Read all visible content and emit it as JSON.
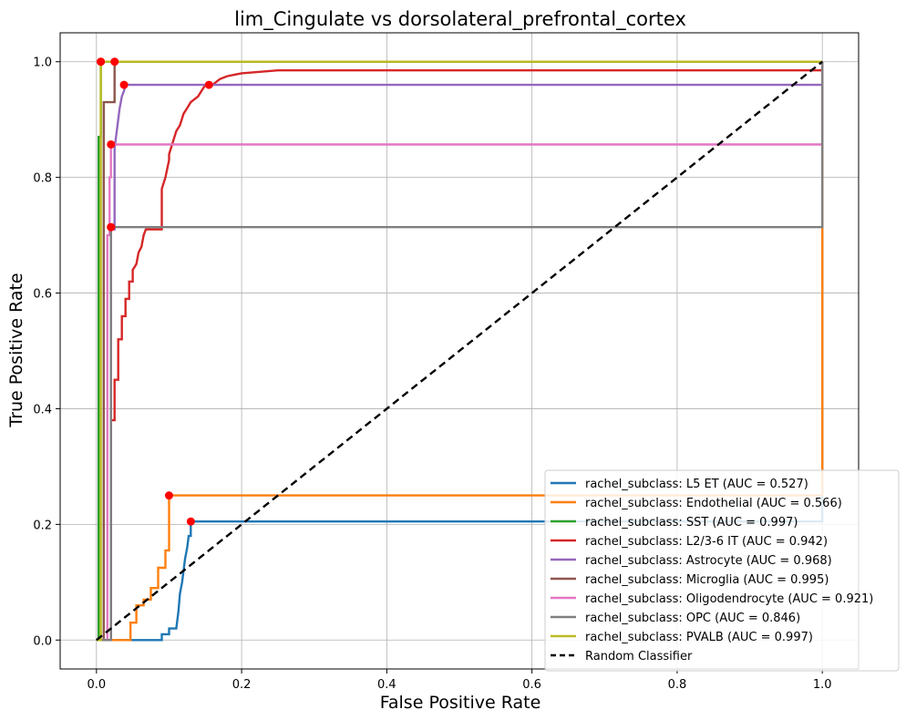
{
  "chart_data": {
    "type": "line",
    "title": "lim_Cingulate vs dorsolateral_prefrontal_cortex",
    "xlabel": "False Positive Rate",
    "ylabel": "True Positive Rate",
    "xlim": [
      -0.05,
      1.05
    ],
    "ylim": [
      -0.05,
      1.05
    ],
    "xticks": [
      0.0,
      0.2,
      0.4,
      0.6,
      0.8,
      1.0
    ],
    "yticks": [
      0.0,
      0.2,
      0.4,
      0.6,
      0.8,
      1.0
    ],
    "xtick_labels": [
      "0.0",
      "0.2",
      "0.4",
      "0.6",
      "0.8",
      "1.0"
    ],
    "ytick_labels": [
      "0.0",
      "0.2",
      "0.4",
      "0.6",
      "0.8",
      "1.0"
    ],
    "grid": true,
    "legend_position": "lower-right",
    "series": [
      {
        "name": "rachel_subclass: L5 ET (AUC = 0.527)",
        "color": "#1f77b4",
        "x": [
          0,
          0.05,
          0.09,
          0.09,
          0.1,
          0.1,
          0.11,
          0.113,
          0.115,
          0.118,
          0.12,
          0.122,
          0.125,
          0.127,
          0.13,
          0.13,
          0.6,
          1.0,
          1.0
        ],
        "y": [
          0,
          0,
          0,
          0.01,
          0.01,
          0.02,
          0.02,
          0.05,
          0.08,
          0.1,
          0.12,
          0.14,
          0.16,
          0.18,
          0.18,
          0.205,
          0.205,
          0.205,
          1.0
        ],
        "marker": [
          0.13,
          0.205
        ]
      },
      {
        "name": "rachel_subclass: Endothelial (AUC = 0.566)",
        "color": "#ff7f0e",
        "x": [
          0,
          0.047,
          0.047,
          0.055,
          0.055,
          0.065,
          0.065,
          0.075,
          0.075,
          0.085,
          0.085,
          0.095,
          0.095,
          0.1,
          0.1,
          1.0,
          1.0
        ],
        "y": [
          0,
          0,
          0.03,
          0.03,
          0.06,
          0.06,
          0.07,
          0.07,
          0.09,
          0.09,
          0.125,
          0.125,
          0.155,
          0.155,
          0.25,
          0.25,
          1.0
        ],
        "marker": [
          0.1,
          0.25
        ]
      },
      {
        "name": "rachel_subclass: SST (AUC = 0.997)",
        "color": "#2ca02c",
        "x": [
          0,
          0.003,
          0.003,
          0.006,
          0.006,
          1.0
        ],
        "y": [
          0,
          0,
          0.87,
          0.87,
          1.0,
          1.0
        ],
        "marker": [
          0.006,
          1.0
        ]
      },
      {
        "name": "rachel_subclass: L2/3-6 IT (AUC = 0.942)",
        "color": "#d62728",
        "x": [
          0,
          0.02,
          0.02,
          0.025,
          0.025,
          0.03,
          0.03,
          0.035,
          0.035,
          0.04,
          0.04,
          0.045,
          0.045,
          0.05,
          0.05,
          0.055,
          0.058,
          0.062,
          0.065,
          0.068,
          0.07,
          0.075,
          0.08,
          0.08,
          0.09,
          0.09,
          0.095,
          0.1,
          0.1,
          0.105,
          0.11,
          0.115,
          0.12,
          0.125,
          0.13,
          0.14,
          0.15,
          0.16,
          0.17,
          0.18,
          0.2,
          0.25,
          0.6,
          1.0,
          1.0
        ],
        "y": [
          0,
          0,
          0.38,
          0.38,
          0.45,
          0.45,
          0.52,
          0.52,
          0.56,
          0.56,
          0.59,
          0.59,
          0.62,
          0.62,
          0.64,
          0.65,
          0.67,
          0.68,
          0.7,
          0.71,
          0.71,
          0.71,
          0.71,
          0.71,
          0.71,
          0.78,
          0.8,
          0.83,
          0.84,
          0.86,
          0.88,
          0.89,
          0.91,
          0.92,
          0.93,
          0.94,
          0.96,
          0.96,
          0.97,
          0.975,
          0.98,
          0.985,
          0.985,
          0.985,
          1.0
        ],
        "marker": null
      },
      {
        "name": "rachel_subclass: Astrocyte (AUC = 0.968)",
        "color": "#9467bd",
        "x": [
          0,
          0.02,
          0.02,
          0.025,
          0.025,
          0.028,
          0.03,
          0.032,
          0.035,
          0.038,
          0.04,
          0.155,
          1.0,
          1.0
        ],
        "y": [
          0,
          0,
          0.71,
          0.71,
          0.85,
          0.88,
          0.9,
          0.92,
          0.94,
          0.95,
          0.96,
          0.96,
          0.96,
          1.0
        ],
        "marker": [
          0.155,
          0.96
        ]
      },
      {
        "name": "rachel_subclass: Microglia (AUC = 0.995)",
        "color": "#8c564b",
        "x": [
          0,
          0.01,
          0.01,
          0.025,
          0.025,
          1.0
        ],
        "y": [
          0,
          0,
          0.93,
          0.93,
          1.0,
          1.0
        ],
        "marker": [
          0.025,
          1.0
        ]
      },
      {
        "name": "rachel_subclass: Oligodendrocyte (AUC = 0.921)",
        "color": "#e377c2",
        "x": [
          0,
          0.015,
          0.015,
          0.018,
          0.018,
          0.02,
          0.02,
          1.0,
          1.0
        ],
        "y": [
          0,
          0,
          0.7,
          0.7,
          0.8,
          0.8,
          0.857,
          0.857,
          1.0
        ],
        "marker": [
          0.02,
          0.857
        ]
      },
      {
        "name": "rachel_subclass: OPC (AUC = 0.846)",
        "color": "#7f7f7f",
        "x": [
          0,
          0.02,
          0.02,
          1.0,
          1.0
        ],
        "y": [
          0,
          0,
          0.714,
          0.714,
          1.0
        ],
        "marker": [
          0.02,
          0.714
        ]
      },
      {
        "name": "rachel_subclass: PVALB (AUC = 0.997)",
        "color": "#bcbd22",
        "x": [
          0,
          0.006,
          0.006,
          1.0
        ],
        "y": [
          0,
          0,
          1.0,
          1.0
        ],
        "marker": [
          0.006,
          1.0
        ]
      },
      {
        "name": "Random Classifier",
        "color": "#000000",
        "dashed": true,
        "x": [
          0,
          1
        ],
        "y": [
          0,
          1
        ],
        "marker": null
      }
    ],
    "extra_markers": [
      [
        0.038,
        0.96
      ],
      [
        0.02,
        0.714
      ]
    ],
    "marker_color": "#ff0000"
  }
}
